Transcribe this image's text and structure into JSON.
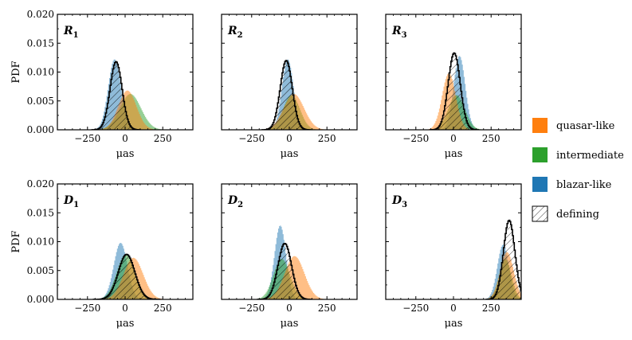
{
  "chart_data": {
    "type": "area",
    "figure_kind": "grid of histograms (3 columns x 2 rows)",
    "shared_xlim": [
      -450,
      450
    ],
    "shared_ylim": [
      0,
      0.02
    ],
    "x_ticks": [
      -250,
      0,
      250
    ],
    "y_ticks": [
      0.0,
      0.005,
      0.01,
      0.015,
      0.02
    ],
    "y_tick_labels": [
      "0.000",
      "0.005",
      "0.010",
      "0.015",
      "0.020"
    ],
    "x_tick_labels": [
      "−250",
      "0",
      "250"
    ],
    "xlabel": "μas",
    "ylabel": "PDF",
    "grid": false,
    "legend_position": "right",
    "legend": [
      {
        "key": "quasar",
        "label": "quasar-like",
        "color": "#ff7f0e",
        "style": "fill"
      },
      {
        "key": "intermediate",
        "label": "intermediate",
        "color": "#2ca02c",
        "style": "fill"
      },
      {
        "key": "blazar",
        "label": "blazar-like",
        "color": "#1f77b4",
        "style": "fill"
      },
      {
        "key": "defining",
        "label": "defining",
        "color": "#000000",
        "style": "hatch"
      }
    ],
    "panels": [
      {
        "label": "R",
        "sub": "1",
        "series": {
          "blazar": {
            "mu": -70,
            "sigma": 42,
            "peak": 0.0122
          },
          "intermediate": {
            "mu": 35,
            "sigma": 70,
            "peak": 0.0062
          },
          "quasar": {
            "mu": 15,
            "sigma": 60,
            "peak": 0.0068
          },
          "defining": {
            "mu": -60,
            "sigma": 40,
            "peak": 0.0118
          }
        }
      },
      {
        "label": "R",
        "sub": "2",
        "series": {
          "blazar": {
            "mu": -10,
            "sigma": 38,
            "peak": 0.0122
          },
          "intermediate": {
            "mu": 15,
            "sigma": 55,
            "peak": 0.006
          },
          "quasar": {
            "mu": 30,
            "sigma": 68,
            "peak": 0.0062
          },
          "defining": {
            "mu": -20,
            "sigma": 40,
            "peak": 0.012
          }
        }
      },
      {
        "label": "R",
        "sub": "3",
        "series": {
          "blazar": {
            "mu": 40,
            "sigma": 38,
            "peak": 0.0128
          },
          "intermediate": {
            "mu": 20,
            "sigma": 55,
            "peak": 0.006
          },
          "quasar": {
            "mu": -30,
            "sigma": 45,
            "peak": 0.0098
          },
          "defining": {
            "mu": 5,
            "sigma": 40,
            "peak": 0.0133
          }
        }
      },
      {
        "label": "D",
        "sub": "1",
        "series": {
          "blazar": {
            "mu": -30,
            "sigma": 45,
            "peak": 0.0098
          },
          "intermediate": {
            "mu": 5,
            "sigma": 60,
            "peak": 0.0078
          },
          "quasar": {
            "mu": 55,
            "sigma": 65,
            "peak": 0.0072
          },
          "defining": {
            "mu": 10,
            "sigma": 55,
            "peak": 0.0078
          }
        }
      },
      {
        "label": "D",
        "sub": "2",
        "series": {
          "blazar": {
            "mu": -60,
            "sigma": 38,
            "peak": 0.0128
          },
          "intermediate": {
            "mu": -50,
            "sigma": 55,
            "peak": 0.007
          },
          "quasar": {
            "mu": 35,
            "sigma": 65,
            "peak": 0.0075
          },
          "defining": {
            "mu": -30,
            "sigma": 45,
            "peak": 0.0097
          }
        }
      },
      {
        "label": "D",
        "sub": "3",
        "series": {
          "blazar": {
            "mu": 330,
            "sigma": 38,
            "peak": 0.0095
          },
          "intermediate": {
            "mu": 345,
            "sigma": 40,
            "peak": 0.007
          },
          "quasar": {
            "mu": 355,
            "sigma": 45,
            "peak": 0.0082
          },
          "defining": {
            "mu": 370,
            "sigma": 38,
            "peak": 0.0137
          }
        }
      }
    ]
  }
}
